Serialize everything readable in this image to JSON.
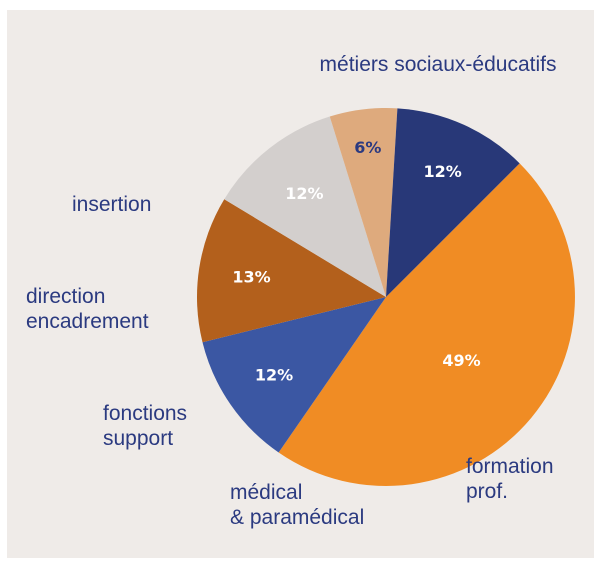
{
  "chart_data": {
    "type": "pie",
    "title": "",
    "slices": [
      {
        "label_lines": [
          "métiers sociaux-éducatifs"
        ],
        "value": 49,
        "value_label": "49%",
        "color": "#f08c24",
        "text_color": "#ffffff"
      },
      {
        "label_lines": [
          "formation",
          "prof."
        ],
        "value": 12,
        "value_label": "12%",
        "color": "#3b57a3",
        "text_color": "#ffffff"
      },
      {
        "label_lines": [
          "médical",
          "& paramédical"
        ],
        "value": 13,
        "value_label": "13%",
        "color": "#b3601c",
        "text_color": "#ffffff"
      },
      {
        "label_lines": [
          "fonctions",
          "support"
        ],
        "value": 12,
        "value_label": "12%",
        "color": "#d3cfcd",
        "text_color": "#ffffff"
      },
      {
        "label_lines": [
          "direction",
          "encadrement"
        ],
        "value": 6,
        "value_label": "6%",
        "color": "#deaa7d",
        "text_color": "#2b3a80"
      },
      {
        "label_lines": [
          "insertion"
        ],
        "value": 12,
        "value_label": "12%",
        "color": "#283878",
        "text_color": "#ffffff"
      }
    ]
  }
}
